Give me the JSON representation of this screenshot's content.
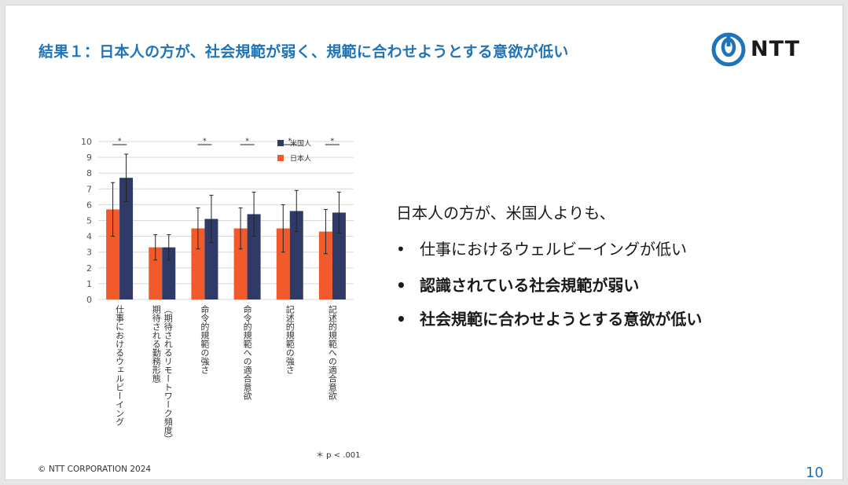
{
  "slide": {
    "title": "結果１：日本人の方が、社会規範が弱く、規範に合わせようとする意欲が低い",
    "logo_text": "NTT",
    "footer": "© NTT CORPORATION 2024",
    "page_number": "10",
    "brand_color": "#1f74b8"
  },
  "summary": {
    "lead": "日本人の方が、米国人よりも、",
    "bullet_mark": "•",
    "bullets": [
      "仕事におけるウェルビーイングが低い",
      "認識されている社会規範が弱い",
      "社会規範に合わせようとする意欲が低い"
    ]
  },
  "chart_data": {
    "type": "bar",
    "categories": [
      "仕事におけるウェルビーイング",
      "期待される勤務形態（期待されるリモートワーク頻度）",
      "命令的規範の強さ",
      "命令的規範への適合意欲",
      "記述的規範の強さ",
      "記述的規範への適合意欲"
    ],
    "category_lines": [
      [
        "仕事におけるウェルビーイング"
      ],
      [
        "期待される勤務形態",
        "（期待されるリモートワーク頻度）"
      ],
      [
        "命令的規範の強さ"
      ],
      [
        "命令的規範への適合意欲"
      ],
      [
        "記述的規範の強さ"
      ],
      [
        "記述的規範への適合意欲"
      ]
    ],
    "series": [
      {
        "name": "日本人",
        "color": "#f15a2b",
        "values": [
          5.7,
          3.3,
          4.5,
          4.5,
          4.5,
          4.3
        ],
        "error": [
          1.7,
          0.8,
          1.3,
          1.3,
          1.5,
          1.4
        ]
      },
      {
        "name": "米国人",
        "color": "#2f3a66",
        "values": [
          7.7,
          3.3,
          5.1,
          5.4,
          5.6,
          5.5
        ],
        "error": [
          1.5,
          0.8,
          1.5,
          1.4,
          1.3,
          1.3
        ]
      }
    ],
    "significance": [
      "*",
      "",
      "*",
      "*",
      "*",
      "*"
    ],
    "ylim": [
      0,
      10
    ],
    "yticks": [
      0,
      1,
      2,
      3,
      4,
      5,
      6,
      7,
      8,
      9,
      10
    ],
    "grid": true,
    "legend_position": "top-right",
    "note": "＊ p < .001"
  }
}
